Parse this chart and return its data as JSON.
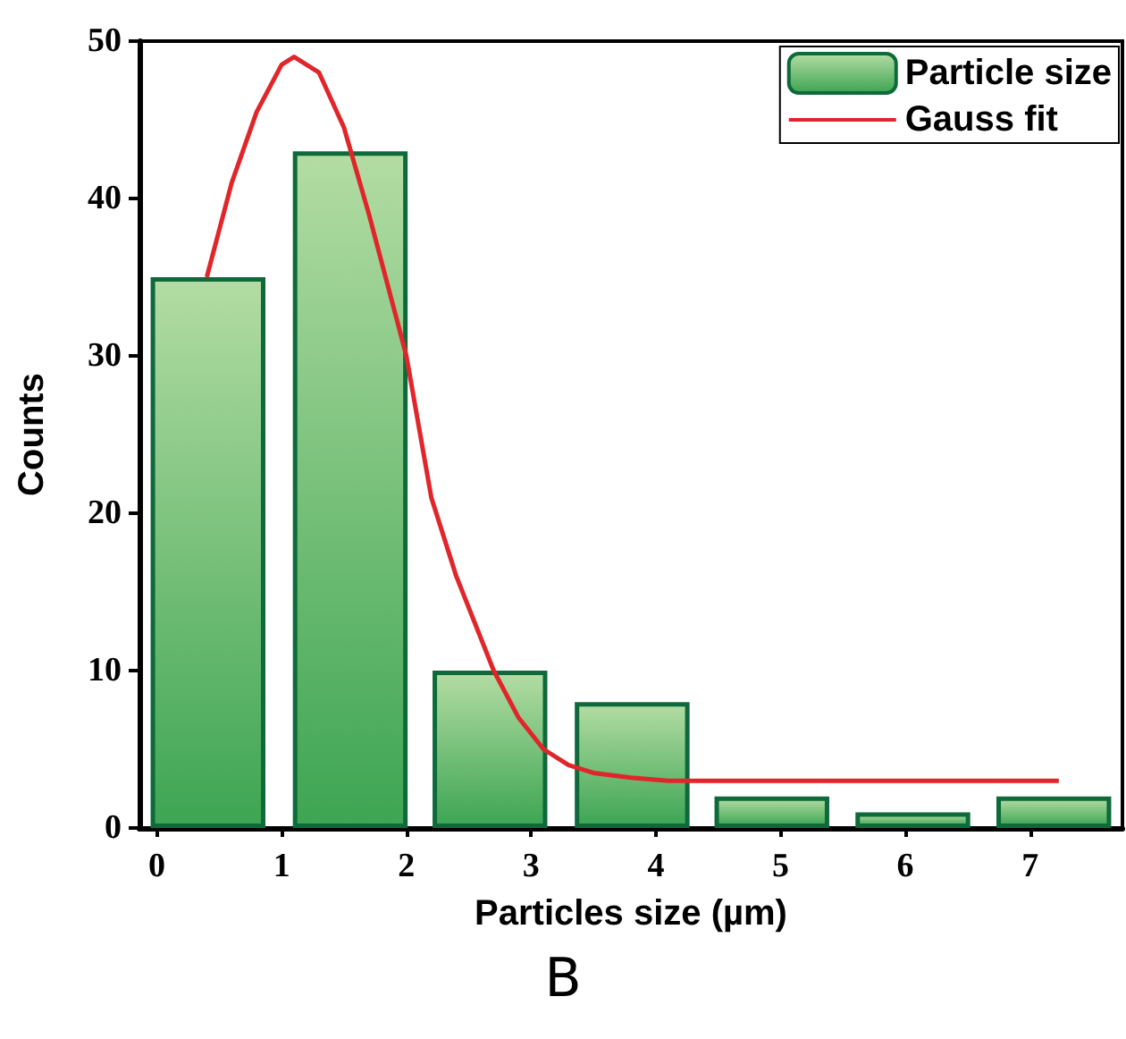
{
  "chart_data": {
    "type": "bar",
    "xlabel": "Particles size (µm)",
    "ylabel": "Counts",
    "annotations": [
      "B"
    ],
    "xlim": [
      -0.14,
      7.74
    ],
    "xticks": [
      0,
      1,
      2,
      3,
      4,
      5,
      6,
      7
    ],
    "ylim": [
      0,
      50
    ],
    "yticks": [
      0,
      10,
      20,
      30,
      40,
      50
    ],
    "legend": "top right",
    "grid": false,
    "series": [
      {
        "name": "Particle size",
        "color": "#0e6a3a",
        "x": [
          0.41,
          1.55,
          2.67,
          3.81,
          4.93,
          6.06,
          7.19
        ],
        "values": [
          35,
          43,
          10,
          8,
          2,
          1,
          2
        ]
      },
      {
        "name": "Gauss fit",
        "type": "line",
        "color": "#e0262a",
        "marker": "none",
        "line_style": "solid",
        "x": [
          0.4,
          0.6,
          0.8,
          1.0,
          1.1,
          1.3,
          1.5,
          1.7,
          1.9,
          2.0,
          2.2,
          2.4,
          2.7,
          2.9,
          3.1,
          3.3,
          3.5,
          3.8,
          4.1,
          4.5,
          7.23
        ],
        "values": [
          35,
          41,
          45.5,
          48.5,
          49,
          48,
          44.5,
          39,
          33,
          30,
          21,
          16,
          10,
          7,
          5,
          4,
          3.5,
          3.2,
          3,
          3,
          3
        ]
      }
    ]
  }
}
